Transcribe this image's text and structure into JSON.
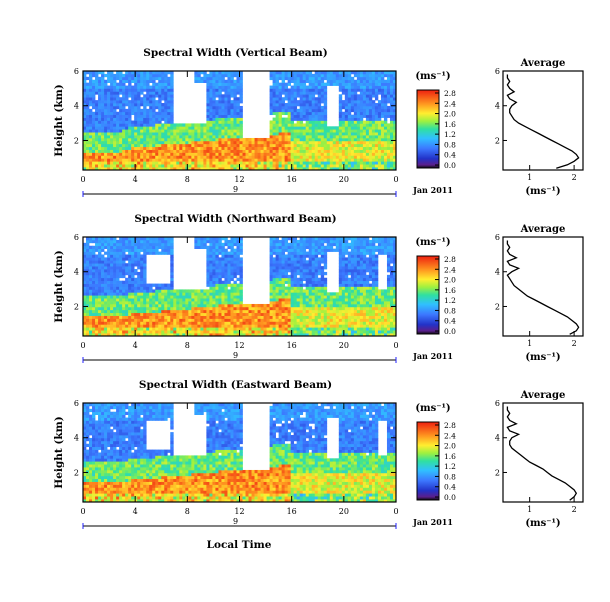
{
  "panels": [
    {
      "title": "Spectral Width (Vertical Beam)",
      "cbar_ticks": [
        "2.8",
        "2.4",
        "2.0",
        "1.6",
        "1.2",
        "0.8",
        "0.4",
        "0.0"
      ]
    },
    {
      "title": "Spectral Width (Northward Beam)",
      "cbar_ticks": [
        "2.8",
        "2.4",
        "2.0",
        "1.6",
        "1.2",
        "0.8",
        "0.4",
        "0.0"
      ]
    },
    {
      "title": "Spectral Width (Eastward Beam)",
      "cbar_ticks": [
        "2.8",
        "2.4",
        "2.0",
        "1.6",
        "1.2",
        "0.8",
        "0.4",
        "0.0"
      ]
    }
  ],
  "shared": {
    "ylabel": "Height (km)",
    "y_ticks": [
      "6",
      "4",
      "2"
    ],
    "x_ticks": [
      "0",
      "4",
      "8",
      "12",
      "16",
      "20",
      "0"
    ],
    "day_label": "9",
    "date_label": "Jan 2011",
    "cbar_unit": "(ms⁻¹)",
    "avg_title": "Average",
    "avg_xlabel": "(ms⁻¹)",
    "avg_x_ticks": [
      "1",
      "2"
    ],
    "avg_y_ticks": [
      "6",
      "4",
      "2"
    ],
    "xlabel_bottom": "Local Time"
  },
  "chart_data": [
    {
      "type": "heatmap",
      "title": "Spectral Width (Vertical Beam)",
      "x_range": [
        0,
        24
      ],
      "y_range": [
        0.3,
        6
      ],
      "c_range": [
        0,
        2.8
      ],
      "avg_profile": {
        "type": "line",
        "title": "Average",
        "xlim": [
          0.4,
          2.2
        ],
        "ylim": [
          0.3,
          6
        ],
        "height": [
          0.4,
          0.6,
          0.8,
          1.0,
          1.2,
          1.4,
          1.6,
          1.8,
          2.0,
          2.2,
          2.4,
          2.6,
          2.8,
          3.0,
          3.2,
          3.4,
          3.6,
          3.8,
          4.0,
          4.2,
          4.4,
          4.6,
          4.8,
          5.0,
          5.2,
          5.4,
          5.6,
          5.8
        ],
        "width": [
          1.6,
          1.85,
          2.0,
          2.1,
          2.05,
          1.95,
          1.8,
          1.65,
          1.5,
          1.35,
          1.2,
          1.05,
          0.9,
          0.75,
          0.65,
          0.6,
          0.55,
          0.55,
          0.6,
          0.7,
          0.55,
          0.5,
          0.65,
          0.55,
          0.5,
          0.55,
          0.5,
          0.5
        ]
      }
    },
    {
      "type": "heatmap",
      "title": "Spectral Width (Northward Beam)",
      "x_range": [
        0,
        24
      ],
      "y_range": [
        0.3,
        6
      ],
      "c_range": [
        0,
        2.8
      ],
      "avg_profile": {
        "type": "line",
        "title": "Average",
        "xlim": [
          0.4,
          2.2
        ],
        "ylim": [
          0.3,
          6
        ],
        "height": [
          0.4,
          0.6,
          0.8,
          1.0,
          1.2,
          1.4,
          1.6,
          1.8,
          2.0,
          2.2,
          2.4,
          2.6,
          2.8,
          3.0,
          3.2,
          3.4,
          3.6,
          3.8,
          4.0,
          4.2,
          4.4,
          4.6,
          4.8,
          5.0,
          5.2,
          5.4,
          5.6,
          5.8
        ],
        "width": [
          1.9,
          2.05,
          2.1,
          2.05,
          1.95,
          1.85,
          1.7,
          1.55,
          1.4,
          1.25,
          1.1,
          0.95,
          0.85,
          0.75,
          0.65,
          0.6,
          0.55,
          0.5,
          0.6,
          0.75,
          0.55,
          0.5,
          0.7,
          0.55,
          0.5,
          0.55,
          0.5,
          0.5
        ]
      }
    },
    {
      "type": "heatmap",
      "title": "Spectral Width (Eastward Beam)",
      "x_range": [
        0,
        24
      ],
      "y_range": [
        0.3,
        6
      ],
      "c_range": [
        0,
        2.8
      ],
      "avg_profile": {
        "type": "line",
        "title": "Average",
        "xlim": [
          0.4,
          2.2
        ],
        "ylim": [
          0.3,
          6
        ],
        "height": [
          0.4,
          0.6,
          0.8,
          1.0,
          1.2,
          1.4,
          1.6,
          1.8,
          2.0,
          2.2,
          2.4,
          2.6,
          2.8,
          3.0,
          3.2,
          3.4,
          3.6,
          3.8,
          4.0,
          4.2,
          4.4,
          4.6,
          4.8,
          5.0,
          5.2,
          5.4,
          5.6,
          5.8
        ],
        "width": [
          1.9,
          2.0,
          2.05,
          2.0,
          1.9,
          1.8,
          1.65,
          1.5,
          1.4,
          1.3,
          1.15,
          1.0,
          0.9,
          0.8,
          0.7,
          0.6,
          0.55,
          0.55,
          0.6,
          0.75,
          0.55,
          0.5,
          0.7,
          0.55,
          0.5,
          0.55,
          0.5,
          0.5
        ]
      }
    }
  ]
}
